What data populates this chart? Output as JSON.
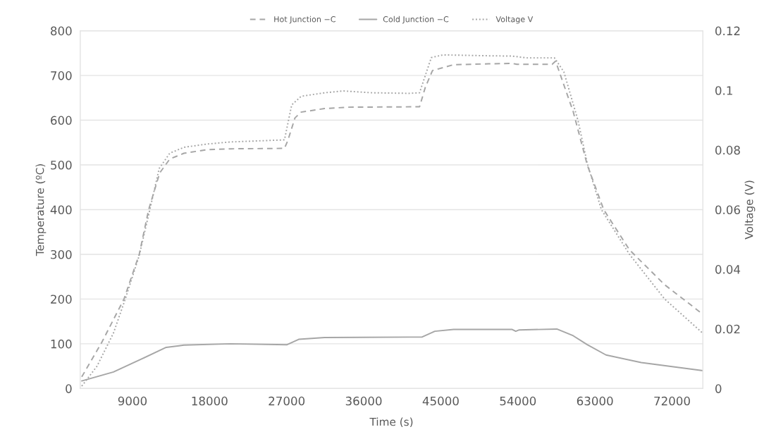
{
  "chart_data": {
    "type": "line",
    "xlabel": "Time (s)",
    "ylabel": "Temperature (ºC)",
    "y2label": "Voltage (V)",
    "xlim": [
      2900,
      75600
    ],
    "xticks": [
      9000,
      18000,
      27000,
      36000,
      45000,
      54000,
      63000,
      72000
    ],
    "ylim": [
      0,
      800
    ],
    "yticks": [
      0,
      100,
      200,
      300,
      400,
      500,
      600,
      700,
      800
    ],
    "y2lim": [
      0,
      0.12
    ],
    "y2ticks": [
      0,
      0.02,
      0.04,
      0.06,
      0.08,
      0.1,
      0.12
    ],
    "grid": "y",
    "legend": "top",
    "series": [
      {
        "name": "Hot Junction −C",
        "color": "#a6a6a6",
        "line_style": "dashed",
        "x": [
          3080,
          5410,
          8010,
          9790,
          10890,
          12180,
          13350,
          15000,
          17710,
          20450,
          26750,
          27150,
          27970,
          28690,
          31430,
          34170,
          42520,
          43200,
          44030,
          46490,
          50600,
          53340,
          53880,
          58000,
          58400,
          60460,
          62100,
          64020,
          67030,
          71140,
          75600
        ],
        "values": [
          26,
          103,
          200,
          300,
          400,
          482,
          513,
          526,
          534,
          536,
          537,
          555,
          605,
          618,
          626,
          629,
          630,
          674,
          711,
          724,
          726,
          727,
          725,
          725,
          732,
          619,
          500,
          400,
          310,
          232,
          166
        ]
      },
      {
        "name": "Cold Junction −C",
        "color": "#a6a6a6",
        "line_style": "solid",
        "x": [
          3080,
          6780,
          10070,
          12940,
          15000,
          20450,
          27050,
          28410,
          31430,
          41290,
          42790,
          44300,
          46490,
          53340,
          53750,
          54160,
          58550,
          60460,
          62100,
          64290,
          68400,
          75600
        ],
        "values": [
          17,
          37,
          66,
          92,
          97,
          100,
          98,
          110,
          114,
          115,
          115,
          128,
          132,
          132,
          128,
          131,
          133,
          118,
          98,
          75,
          58,
          40
        ]
      },
      {
        "name": "Voltage V",
        "color": "#a6a6a6",
        "line_style": "dotted",
        "axis": "y2",
        "x": [
          3080,
          4860,
          6780,
          8160,
          9790,
          11030,
          12120,
          13350,
          15000,
          17710,
          20450,
          26750,
          27590,
          28690,
          31430,
          33620,
          36910,
          41290,
          42520,
          43890,
          45260,
          50600,
          53340,
          54980,
          58270,
          59370,
          61010,
          62100,
          63750,
          67030,
          71140,
          75600
        ],
        "values": [
          0.0008,
          0.0075,
          0.0186,
          0.03,
          0.0446,
          0.06,
          0.0738,
          0.0789,
          0.0809,
          0.082,
          0.0827,
          0.0834,
          0.0951,
          0.098,
          0.0992,
          0.0998,
          0.0992,
          0.099,
          0.0992,
          0.111,
          0.1119,
          0.1116,
          0.1115,
          0.1109,
          0.1109,
          0.1062,
          0.09,
          0.0755,
          0.06,
          0.045,
          0.03,
          0.0185
        ]
      }
    ]
  }
}
